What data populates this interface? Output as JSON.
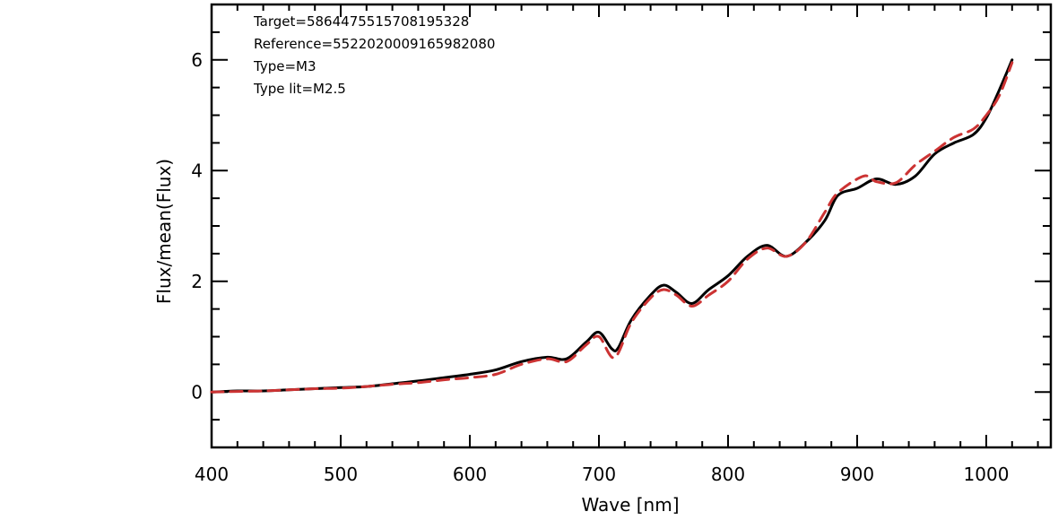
{
  "chart_data": {
    "type": "line",
    "xlabel": "Wave [nm]",
    "ylabel": "Flux/mean(Flux)",
    "xlim": [
      400,
      1050
    ],
    "ylim": [
      -1,
      7
    ],
    "x_ticks": [
      400,
      500,
      600,
      700,
      800,
      900,
      1000
    ],
    "y_ticks": [
      0,
      2,
      4,
      6
    ],
    "grid": false,
    "annotations": [
      "Target=5864475515708195328",
      "Reference=5522020009165982080",
      "Type=M3",
      "Type lit=M2.5"
    ],
    "series": [
      {
        "style": "solid",
        "color": "#000000",
        "x": [
          400,
          420,
          440,
          460,
          480,
          500,
          520,
          540,
          560,
          580,
          600,
          620,
          640,
          660,
          675,
          690,
          700,
          710,
          715,
          725,
          740,
          750,
          760,
          772,
          785,
          800,
          815,
          830,
          845,
          860,
          875,
          885,
          900,
          915,
          930,
          945,
          960,
          975,
          990,
          1000,
          1010,
          1020
        ],
        "y": [
          0.0,
          0.02,
          0.02,
          0.04,
          0.06,
          0.08,
          0.1,
          0.15,
          0.2,
          0.26,
          0.32,
          0.4,
          0.55,
          0.63,
          0.6,
          0.9,
          1.08,
          0.78,
          0.8,
          1.3,
          1.75,
          1.93,
          1.8,
          1.6,
          1.85,
          2.1,
          2.45,
          2.65,
          2.45,
          2.7,
          3.1,
          3.55,
          3.68,
          3.85,
          3.75,
          3.9,
          4.3,
          4.5,
          4.65,
          4.95,
          5.45,
          6.0
        ]
      },
      {
        "style": "dashed",
        "color": "#cc3333",
        "x": [
          400,
          420,
          440,
          460,
          480,
          500,
          520,
          540,
          560,
          580,
          600,
          620,
          640,
          660,
          675,
          690,
          700,
          712,
          725,
          740,
          750,
          760,
          772,
          785,
          800,
          815,
          830,
          845,
          860,
          875,
          885,
          905,
          915,
          930,
          945,
          960,
          975,
          990,
          1000,
          1010,
          1020
        ],
        "y": [
          0.0,
          0.01,
          0.02,
          0.04,
          0.06,
          0.07,
          0.1,
          0.14,
          0.17,
          0.22,
          0.26,
          0.32,
          0.5,
          0.6,
          0.55,
          0.85,
          1.0,
          0.62,
          1.25,
          1.7,
          1.85,
          1.75,
          1.55,
          1.75,
          2.0,
          2.4,
          2.6,
          2.45,
          2.7,
          3.25,
          3.6,
          3.9,
          3.8,
          3.78,
          4.1,
          4.35,
          4.6,
          4.75,
          5.0,
          5.35,
          5.95
        ]
      }
    ]
  }
}
